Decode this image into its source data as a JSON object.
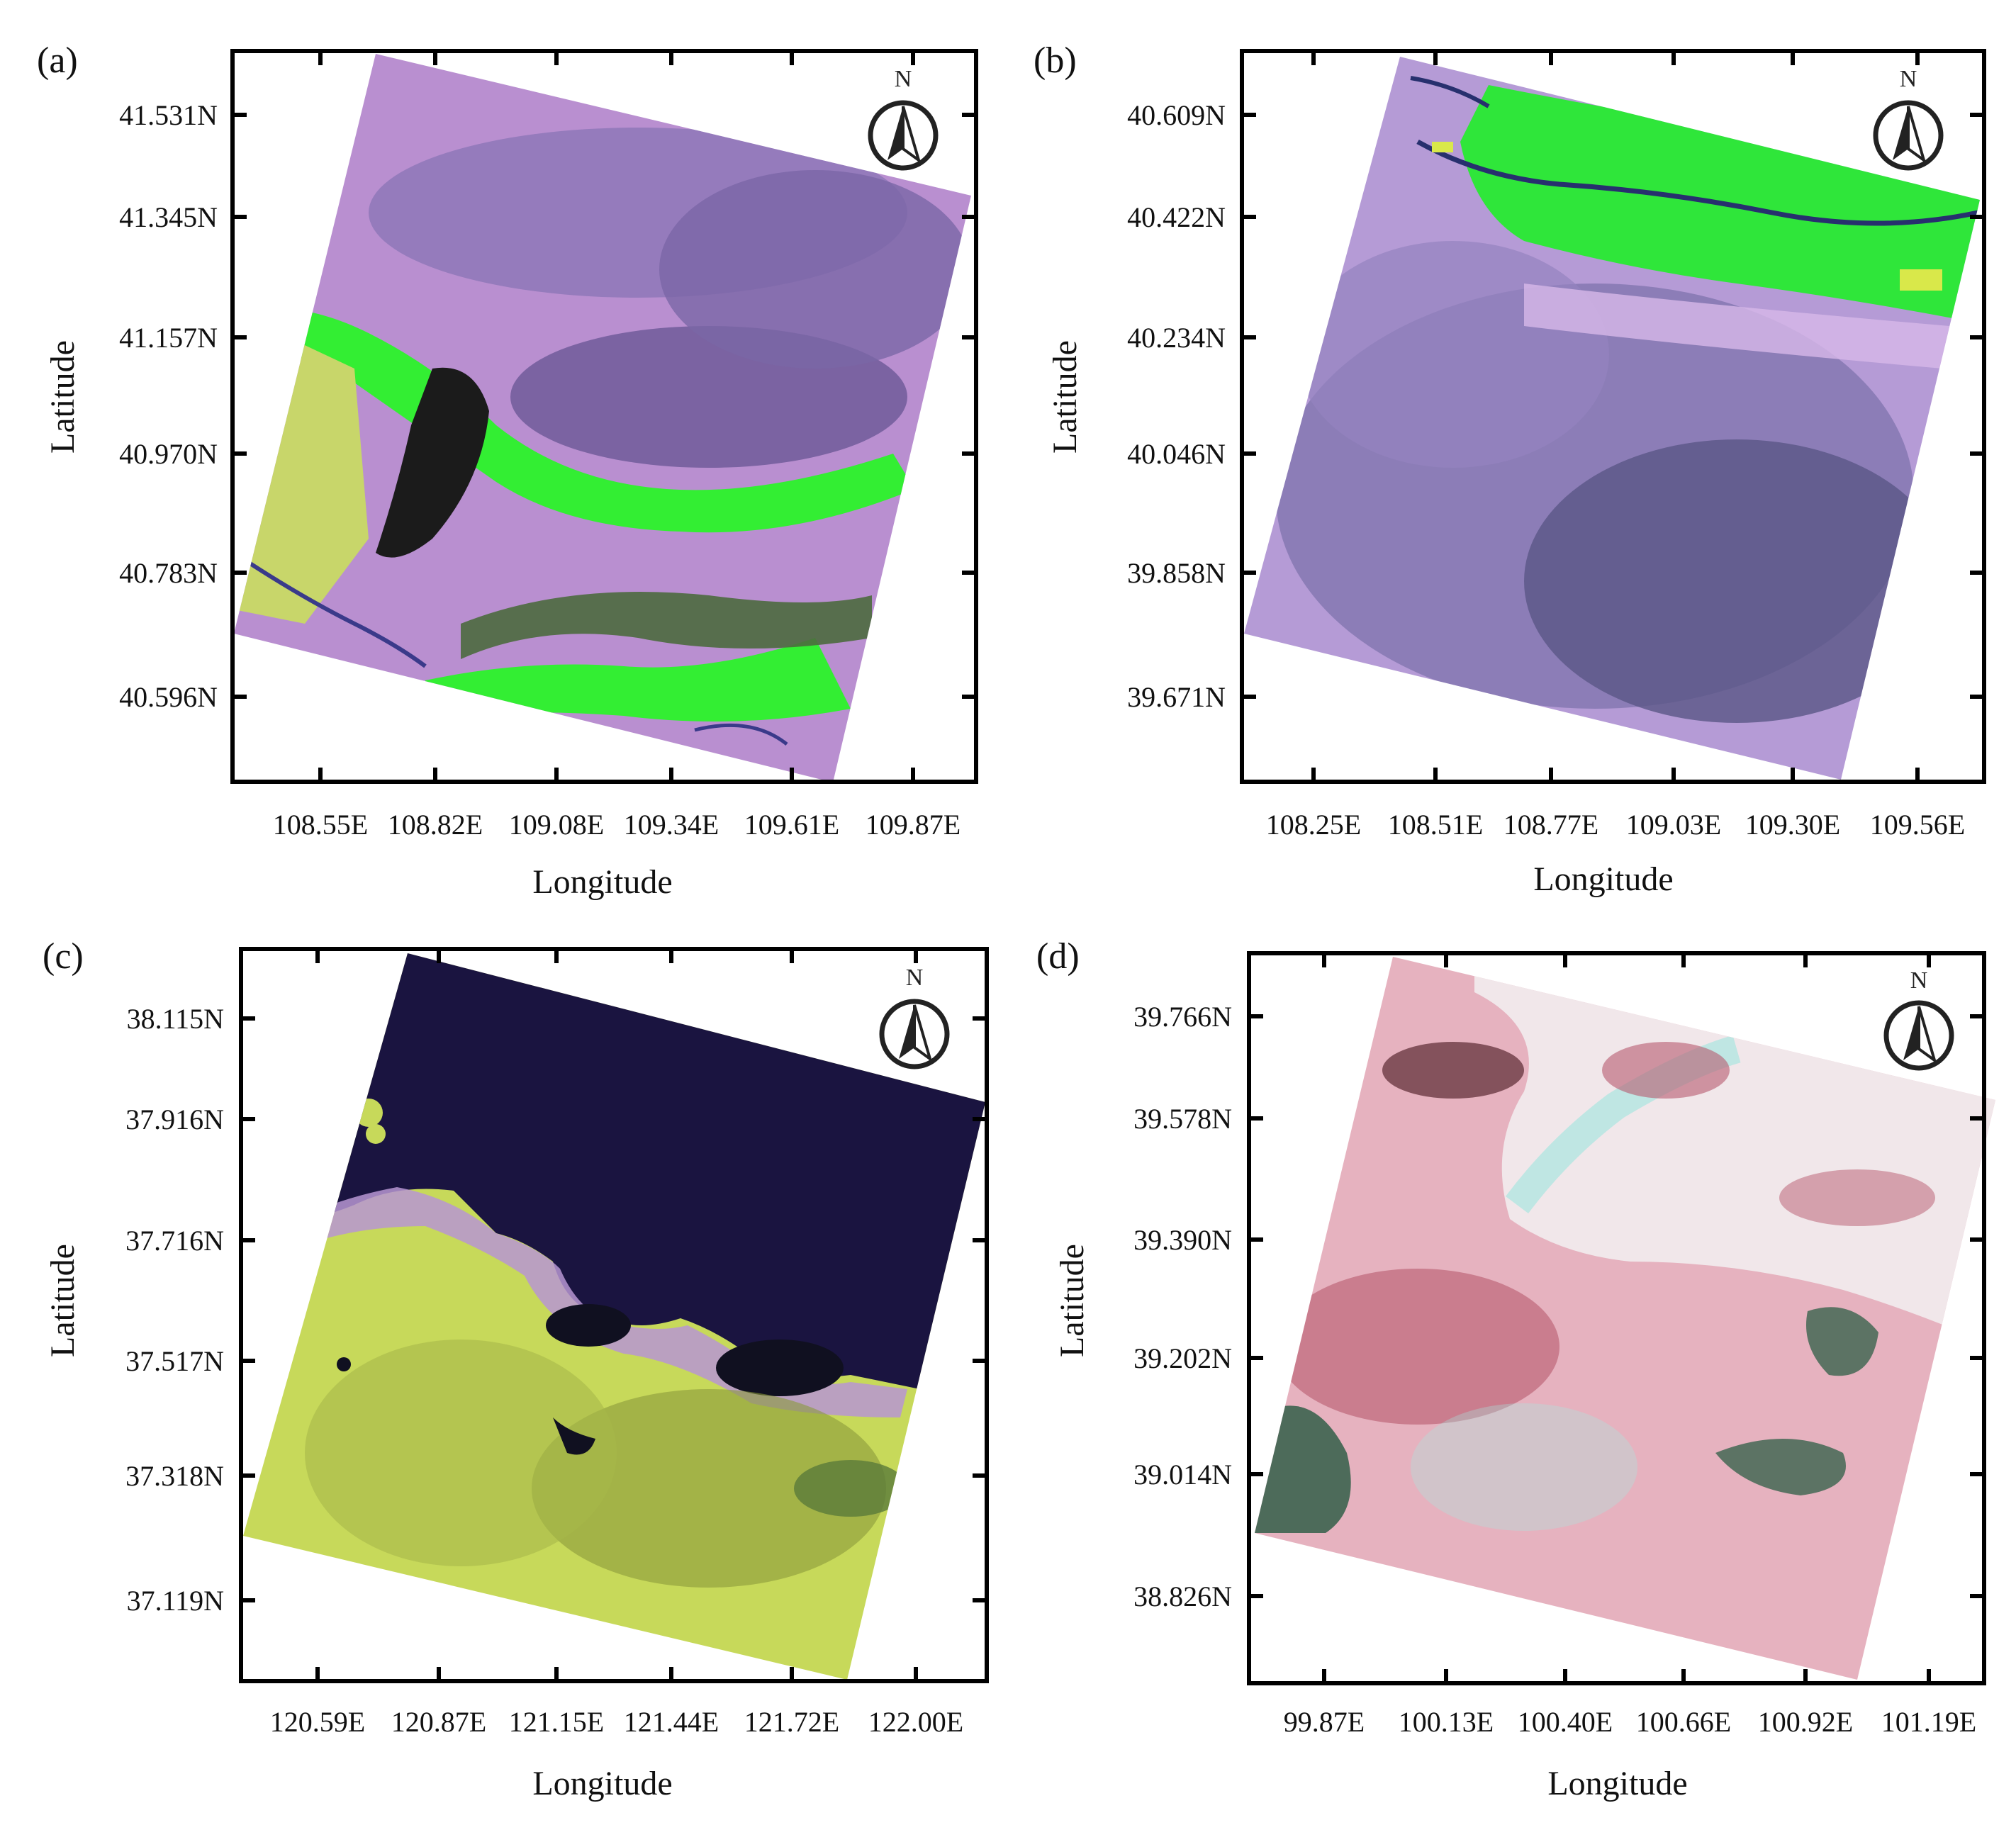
{
  "axis_labels": {
    "x": "Longitude",
    "y": "Latitude"
  },
  "north_label": "N",
  "panels": [
    {
      "id": "a",
      "label": "(a)",
      "lat_ticks": [
        "41.531N",
        "41.345N",
        "41.157N",
        "40.970N",
        "40.783N",
        "40.596N"
      ],
      "lon_ticks": [
        "108.55E",
        "108.82E",
        "109.08E",
        "109.34E",
        "109.61E",
        "109.87E"
      ],
      "colors": {
        "base": "#b98fd0",
        "dark": "#5b4b86",
        "veg": "#33ee33",
        "yellow": "#c8d66a",
        "water": "#1b1b1b"
      }
    },
    {
      "id": "b",
      "label": "(b)",
      "lat_ticks": [
        "40.609N",
        "40.422N",
        "40.234N",
        "40.046N",
        "39.858N",
        "39.671N"
      ],
      "lon_ticks": [
        "108.25E",
        "108.51E",
        "108.77E",
        "109.03E",
        "109.30E",
        "109.56E"
      ],
      "colors": {
        "base": "#b59bd6",
        "dark": "#4f4a7e",
        "veg": "#2fe63a",
        "yellow": "#d9e84a",
        "water": "#27306e"
      }
    },
    {
      "id": "c",
      "label": "(c)",
      "lat_ticks": [
        "38.115N",
        "37.916N",
        "37.716N",
        "37.517N",
        "37.318N",
        "37.119N"
      ],
      "lon_ticks": [
        "120.59E",
        "120.87E",
        "121.15E",
        "121.44E",
        "121.72E",
        "122.00E"
      ],
      "colors": {
        "base": "#c7d95a",
        "dark": "#8a9a3a",
        "sea": "#1a1440",
        "coast": "#b795d2",
        "water": "#101020"
      }
    },
    {
      "id": "d",
      "label": "(d)",
      "lat_ticks": [
        "39.766N",
        "39.578N",
        "39.390N",
        "39.202N",
        "39.014N",
        "38.826N"
      ],
      "lon_ticks": [
        "99.87E",
        "100.13E",
        "100.40E",
        "100.66E",
        "100.92E",
        "101.19E"
      ],
      "colors": {
        "base": "#e6b2bf",
        "dark": "#b85a6e",
        "light": "#f2ecee",
        "cyan": "#a9e6e0",
        "green": "#4d6b5a"
      }
    }
  ]
}
